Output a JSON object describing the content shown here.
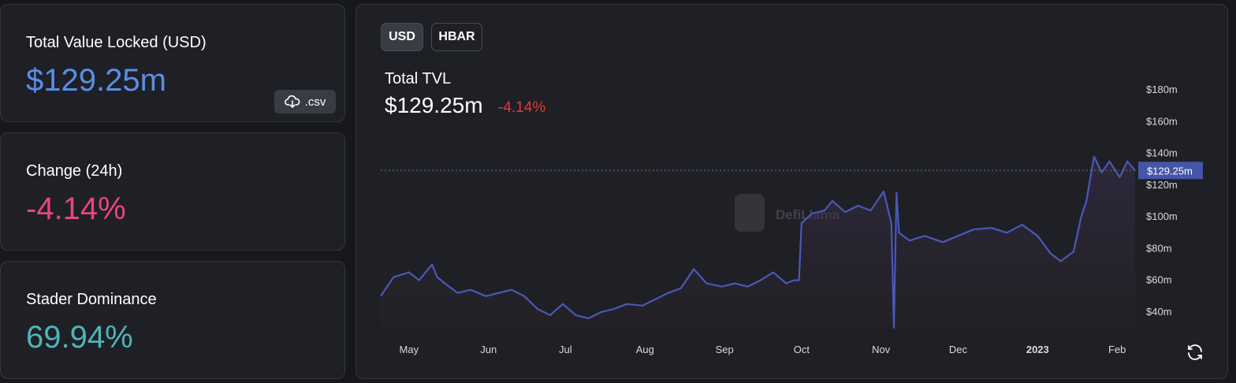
{
  "stats": {
    "tvl_label": "Total Value Locked (USD)",
    "tvl_value": "$129.25m",
    "csv_label": ".csv",
    "change_label": "Change (24h)",
    "change_value": "-4.14%",
    "dominance_label": "Stader Dominance",
    "dominance_value": "69.94%"
  },
  "colors": {
    "tvl_value": "#5b8ee6",
    "change_value": "#e84580",
    "dominance_value": "#4fb4b9",
    "line": "#4a58b8",
    "negative": "#e53935"
  },
  "chart": {
    "toggles": [
      "USD",
      "HBAR"
    ],
    "selected_toggle": "USD",
    "title": "Total TVL",
    "value": "$129.25m",
    "change": "-4.14%",
    "watermark": "DefiLlama",
    "current_value_label": "$129.25m",
    "reload_icon": "reload-icon"
  },
  "chart_data": {
    "type": "area",
    "x_ticks": [
      "May",
      "Jun",
      "Jul",
      "Aug",
      "Sep",
      "Oct",
      "Nov",
      "Dec",
      "2023",
      "Feb"
    ],
    "y_ticks": [
      "$40m",
      "$60m",
      "$80m",
      "$100m",
      "$120m",
      "$140m",
      "$160m",
      "$180m"
    ],
    "ylim": [
      30,
      190
    ],
    "x_range": [
      "2022-04-20",
      "2023-02-08"
    ],
    "current_value": 129.25,
    "series": [
      {
        "x": [
          "2022-04-20",
          "2022-04-25",
          "2022-05-01",
          "2022-05-05",
          "2022-05-10",
          "2022-05-12",
          "2022-05-15",
          "2022-05-20",
          "2022-05-25",
          "2022-05-31",
          "2022-06-05",
          "2022-06-10",
          "2022-06-15",
          "2022-06-20",
          "2022-06-25",
          "2022-06-30",
          "2022-07-05",
          "2022-07-10",
          "2022-07-15",
          "2022-07-20",
          "2022-07-25",
          "2022-07-31",
          "2022-08-05",
          "2022-08-10",
          "2022-08-15",
          "2022-08-20",
          "2022-08-25",
          "2022-08-31",
          "2022-09-05",
          "2022-09-10",
          "2022-09-15",
          "2022-09-20",
          "2022-09-25",
          "2022-09-28",
          "2022-09-30",
          "2022-10-01",
          "2022-10-05",
          "2022-10-10",
          "2022-10-13",
          "2022-10-18",
          "2022-10-23",
          "2022-10-28",
          "2022-11-02",
          "2022-11-05",
          "2022-11-06",
          "2022-11-07",
          "2022-11-08",
          "2022-11-12",
          "2022-11-18",
          "2022-11-25",
          "2022-12-01",
          "2022-12-07",
          "2022-12-14",
          "2022-12-20",
          "2022-12-26",
          "2023-01-01",
          "2023-01-06",
          "2023-01-10",
          "2023-01-15",
          "2023-01-18",
          "2023-01-20",
          "2023-01-23",
          "2023-01-26",
          "2023-01-29",
          "2023-02-02",
          "2023-02-05",
          "2023-02-08"
        ],
        "values": [
          50,
          62,
          65,
          60,
          70,
          62,
          58,
          52,
          54,
          50,
          52,
          54,
          50,
          42,
          38,
          45,
          38,
          36,
          40,
          42,
          45,
          44,
          48,
          52,
          55,
          67,
          58,
          56,
          58,
          56,
          60,
          65,
          58,
          60,
          60,
          96,
          102,
          104,
          110,
          103,
          107,
          104,
          116,
          96,
          30,
          115,
          90,
          85,
          88,
          84,
          88,
          92,
          93,
          90,
          95,
          88,
          77,
          72,
          78,
          100,
          110,
          138,
          128,
          135,
          125,
          135,
          129.25
        ]
      }
    ]
  }
}
